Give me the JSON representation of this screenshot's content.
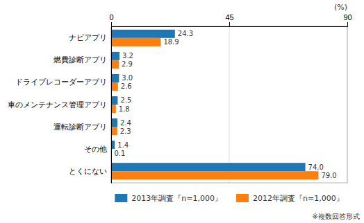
{
  "chart_data": {
    "type": "bar",
    "orientation": "horizontal",
    "categories": [
      "ナビアプリ",
      "燃費診断アプリ",
      "ドライブレコーダーアプリ",
      "車のメンテナンス管理アプリ",
      "運転診断アプリ",
      "その他",
      "とくにない"
    ],
    "series": [
      {
        "name": "2013年調査『n=1,000』",
        "values": [
          24.3,
          3.2,
          3.0,
          2.5,
          2.4,
          1.4,
          74.0
        ],
        "value_labels": [
          "24.3",
          "3.2",
          "3.0",
          "2.5",
          "2.4",
          "1.4",
          "74.0"
        ]
      },
      {
        "name": "2012年調査『n=1,000』",
        "values": [
          18.9,
          2.9,
          2.6,
          1.8,
          2.3,
          0.1,
          79.0
        ],
        "value_labels": [
          "18.9",
          "2.9",
          "2.6",
          "1.8",
          "2.3",
          "0.1",
          "79.0"
        ]
      }
    ],
    "xlabel": "(%)",
    "xlim": [
      0,
      90
    ],
    "xticks": [
      0,
      45,
      90
    ],
    "grid": true,
    "legend": "bottom",
    "data_labels": true,
    "annotations": [
      "※複数回答形式"
    ]
  }
}
